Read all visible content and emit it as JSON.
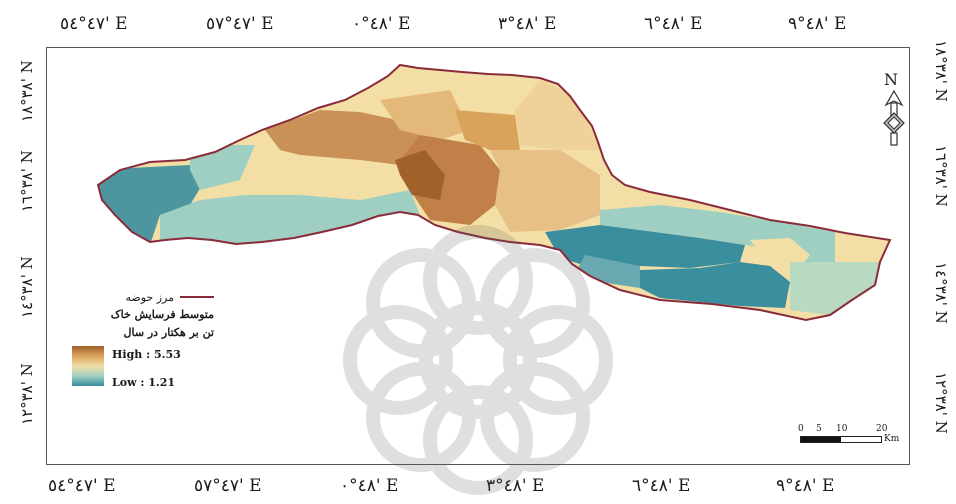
{
  "coords": {
    "top": [
      "٤٧°٥٤' E",
      "٤٧°٥٧' E",
      "٤٨°٠' E",
      "٤٨°٣' E",
      "٤٨°٦' E",
      "٤٨°٩' E"
    ],
    "bottom": [
      "٤٧°٥٤' E",
      "٤٧°٥٧' E",
      "٤٨°٠' E",
      "٤٨°٣' E",
      "٤٨°٦' E",
      "٤٨°٩' E"
    ],
    "left": [
      "٣٨°١٨' N",
      "٣٨°١٦' N",
      "٣٨°١٤' N",
      "٣٨°١٢' N"
    ],
    "right": [
      "٣٨°١٨' N",
      "٣٨°١٦' N",
      "٣٨°١٤' N",
      "٣٨°١٢' N"
    ]
  },
  "legend": {
    "boundary_label": "مرز حوضه",
    "title_line1": "متوسط فرسایش خاک",
    "title_line2": "تن بر هکتار در سال",
    "high_label": "High : 5.53",
    "low_label": "Low : 1.21"
  },
  "scale": {
    "ticks": [
      "0",
      "5",
      "10",
      "20"
    ],
    "unit": "Km"
  },
  "north": {
    "label": "N"
  },
  "colors": {
    "boundary": "#8a2b3a",
    "high": "#a0622a",
    "mid_high": "#d9a35c",
    "mid": "#f3dfa6",
    "mid_low": "#9fcfc2",
    "low": "#3b8e9e"
  }
}
